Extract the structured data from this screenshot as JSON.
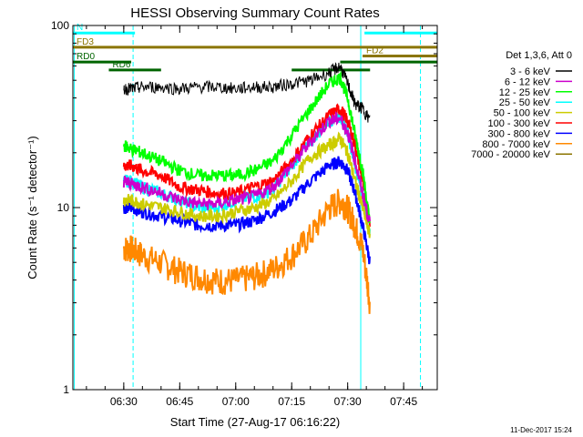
{
  "chart_data": {
    "type": "line",
    "title": "HESSI Observing Summary Count Rates",
    "xlabel": "Start Time (27-Aug-17 06:16:22)",
    "ylabel": "Count Rate (s⁻¹ detector⁻¹)",
    "y_scale": "log",
    "ylim": [
      1,
      100
    ],
    "xlim": [
      "06:16:22",
      "07:54:00"
    ],
    "x_ticks": [
      "06:30",
      "06:45",
      "07:00",
      "07:15",
      "07:30",
      "07:45"
    ],
    "y_ticks": [
      "1",
      "10",
      "100"
    ],
    "footer": "11-Dec-2017 15:24",
    "legend": {
      "header": "Det 1,3,6, Att 0",
      "position": "right"
    },
    "x": [
      "06:30",
      "06:32",
      "06:35",
      "06:40",
      "06:45",
      "06:50",
      "06:55",
      "07:00",
      "07:05",
      "07:10",
      "07:15",
      "07:20",
      "07:25",
      "07:28",
      "07:30",
      "07:32",
      "07:34",
      "07:36"
    ],
    "series": [
      {
        "name": "3 - 6 keV",
        "color": "#000000",
        "values": [
          45,
          45,
          46,
          46,
          45,
          46,
          46,
          45,
          46,
          46,
          48,
          50,
          55,
          60,
          48,
          37,
          35,
          30
        ]
      },
      {
        "name": "6 - 12 keV",
        "color": "#cc00cc",
        "values": [
          14,
          13.5,
          13,
          12,
          11,
          10.5,
          10.5,
          11,
          11.5,
          13,
          17,
          23,
          30,
          31,
          26,
          18,
          12,
          8
        ]
      },
      {
        "name": "12 - 25 keV",
        "color": "#00ff00",
        "values": [
          22,
          21,
          20,
          18,
          16,
          15,
          15,
          15,
          16,
          18,
          25,
          35,
          48,
          52,
          40,
          25,
          16,
          8
        ]
      },
      {
        "name": "25 - 50 keV",
        "color": "#00ffff",
        "values": [
          14,
          14,
          13,
          12,
          11,
          10,
          10,
          11,
          11.5,
          12.5,
          17,
          23,
          30,
          32,
          26,
          17,
          12,
          7
        ]
      },
      {
        "name": "50 - 100 keV",
        "color": "#cccc00",
        "values": [
          11,
          11,
          10.5,
          10,
          9.5,
          9,
          9,
          9.5,
          10,
          11,
          14,
          19,
          22,
          24,
          20,
          14,
          10,
          7
        ]
      },
      {
        "name": "100 - 300 keV",
        "color": "#ff0000",
        "values": [
          17,
          17,
          16,
          15,
          13,
          12.5,
          12,
          12,
          13,
          14,
          18,
          25,
          32,
          35,
          30,
          22,
          14,
          8
        ]
      },
      {
        "name": "300 - 800 keV",
        "color": "#0000ff",
        "values": [
          10,
          10,
          9.5,
          9,
          8.5,
          8,
          8,
          8,
          8.5,
          9.5,
          11,
          14,
          17,
          18,
          16,
          12,
          8,
          5
        ]
      },
      {
        "name": "800 - 7000 keV",
        "color": "#ff8800",
        "values": [
          6,
          6,
          5.5,
          5,
          4.5,
          4.2,
          4,
          4,
          4.2,
          4.6,
          5.5,
          7,
          10,
          11,
          10,
          8,
          6,
          3
        ]
      },
      {
        "name": "7000 - 20000 keV",
        "color": "#8b7500",
        "values": [
          null,
          null,
          null,
          null,
          null,
          null,
          null,
          null,
          null,
          null,
          null,
          null,
          null,
          null,
          null,
          null,
          null,
          null
        ]
      }
    ],
    "flag_bars": [
      {
        "label": "N",
        "color": "#00ffff",
        "ranges": [
          [
            "06:16:22",
            "06:33:00"
          ],
          [
            "07:34:30",
            "07:54:00"
          ]
        ],
        "level": 91
      },
      {
        "label": "FD3",
        "color": "#8b7500",
        "ranges": [
          [
            "06:16:22",
            "07:54:00"
          ]
        ],
        "level": 76
      },
      {
        "label": "FD2",
        "color": "#8b7500",
        "ranges": [
          [
            "07:34:00",
            "07:54:00"
          ]
        ],
        "level": 68
      },
      {
        "label": "RD0",
        "color": "#006400",
        "ranges": [
          [
            "06:16:22",
            "06:32:00"
          ],
          [
            "07:28:00",
            "07:54:00"
          ]
        ],
        "level": 63
      },
      {
        "label": "RD6",
        "color": "#006400",
        "ranges": [
          [
            "06:26:00",
            "06:40:00"
          ],
          [
            "07:15:00",
            "07:36:00"
          ]
        ],
        "level": 57
      }
    ],
    "vlines": [
      {
        "time": "06:16:45",
        "color": "#00ffff",
        "style": "solid"
      },
      {
        "time": "06:32:30",
        "color": "#00ffff",
        "style": "dashed"
      },
      {
        "time": "07:33:30",
        "color": "#00ffff",
        "style": "solid"
      },
      {
        "time": "07:49:30",
        "color": "#00ffff",
        "style": "dashed"
      }
    ]
  }
}
